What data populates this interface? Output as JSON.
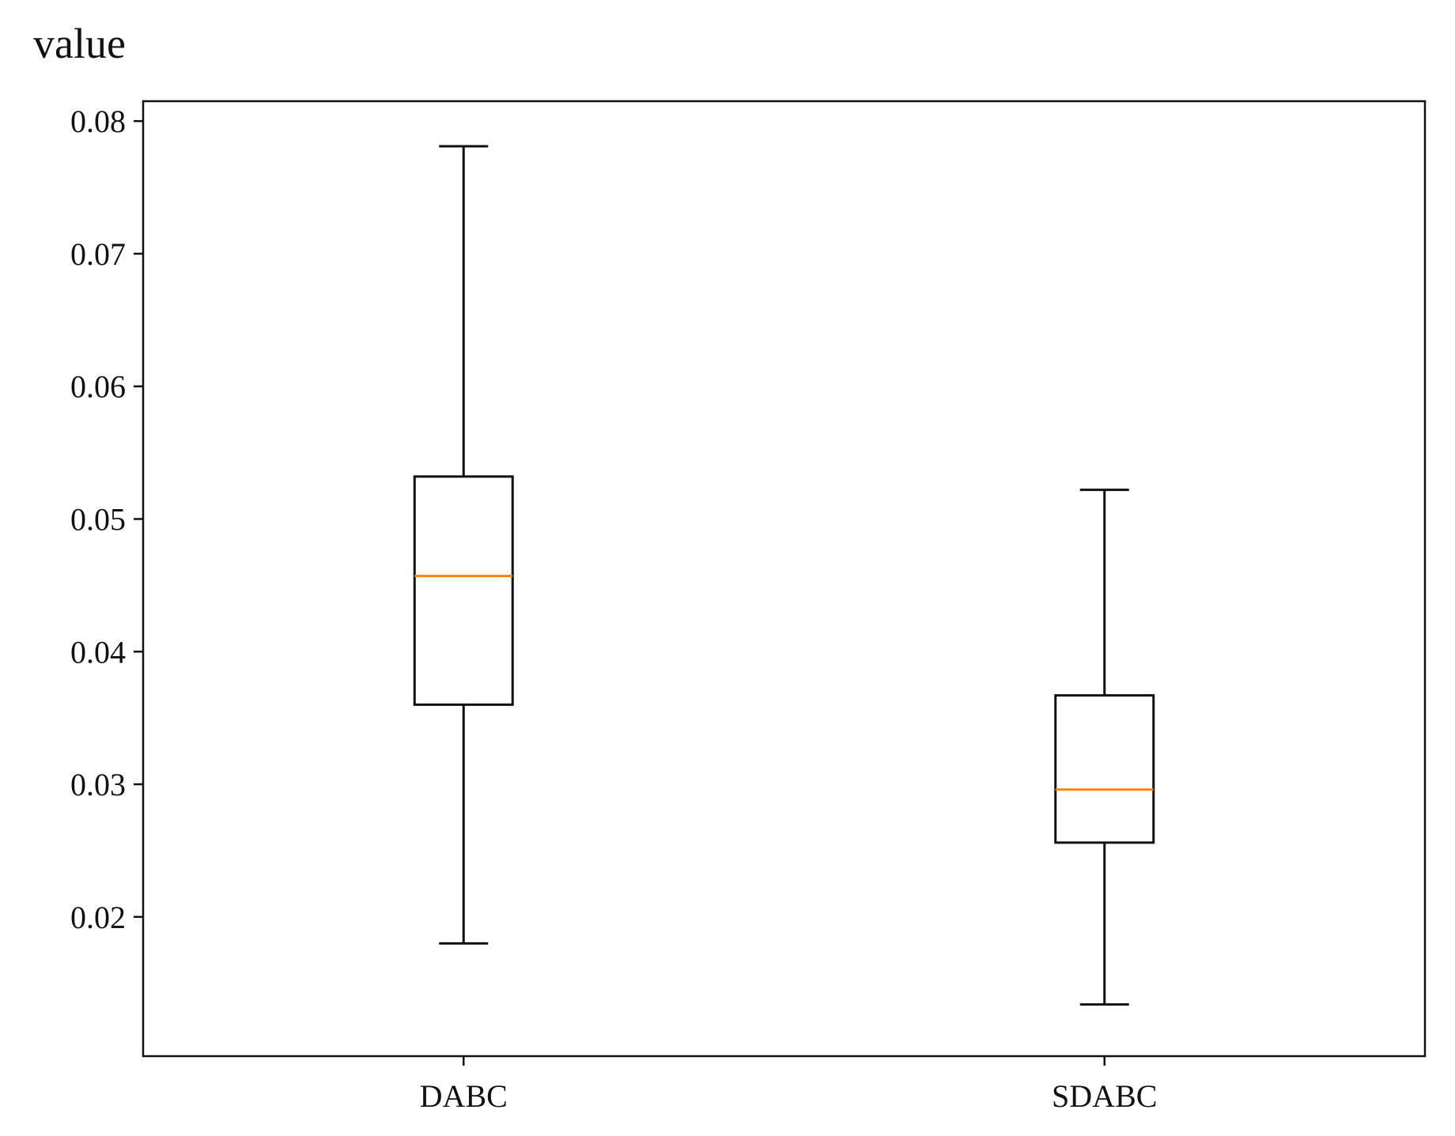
{
  "chart_data": {
    "type": "box",
    "title": "",
    "xlabel": "",
    "ylabel": "value",
    "ylim": [
      0.0095,
      0.0815
    ],
    "yticks": [
      0.02,
      0.03,
      0.04,
      0.05,
      0.06,
      0.07,
      0.08
    ],
    "ytick_labels": [
      "0.02",
      "0.03",
      "0.04",
      "0.05",
      "0.06",
      "0.07",
      "0.08"
    ],
    "grid": false,
    "legend": "none",
    "categories": [
      "DABC",
      "SDABC"
    ],
    "boxes": [
      {
        "category": "DABC",
        "whisker_low": 0.018,
        "q1": 0.036,
        "median": 0.0457,
        "q3": 0.0532,
        "whisker_high": 0.0781
      },
      {
        "category": "SDABC",
        "whisker_low": 0.0134,
        "q1": 0.0256,
        "median": 0.0296,
        "q3": 0.0367,
        "whisker_high": 0.0522
      }
    ],
    "colors": {
      "box_line": "#111111",
      "median_line": "#ff7f0e",
      "axes": "#111111"
    }
  }
}
